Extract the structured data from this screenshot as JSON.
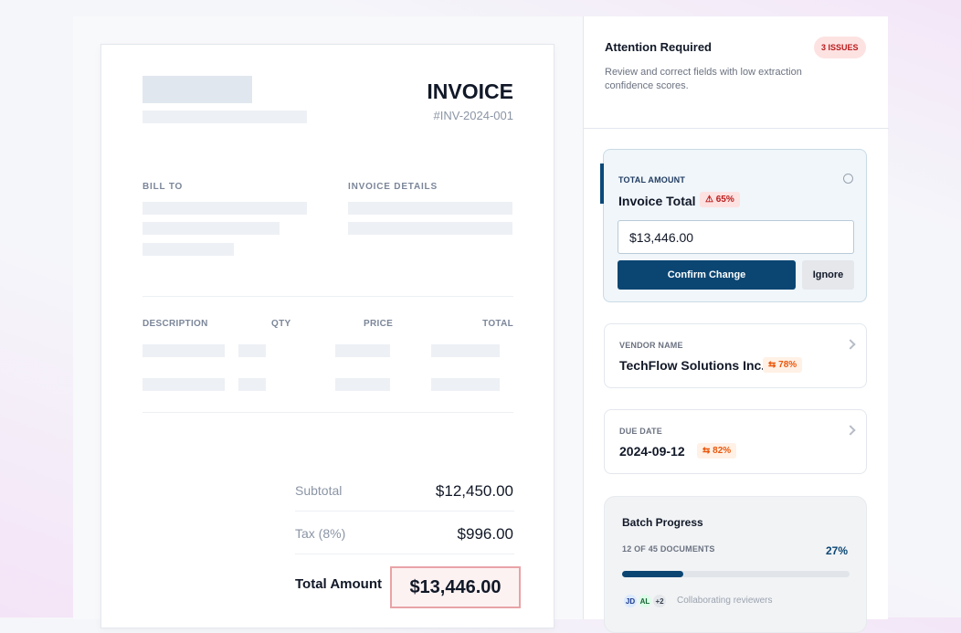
{
  "invoice": {
    "title": "INVOICE",
    "number": "#INV-2024-001",
    "bill_to": "BILL TO",
    "details_label": "INVOICE DETAILS",
    "columns": [
      "DESCRIPTION",
      "QTY",
      "PRICE",
      "TOTAL"
    ],
    "subtotal_label": "Subtotal",
    "subtotal": "$12,450.00",
    "tax_label": "Tax (8%)",
    "tax": "$996.00",
    "total_label": "Total Amount",
    "total": "$13,446.00"
  },
  "sidebar": {
    "title": "Attention Required",
    "issues": "3 ISSUES",
    "description": "Review and correct fields with low extraction confidence scores.",
    "fields": [
      {
        "label": "TOTAL AMOUNT",
        "name": "Invoice Total",
        "confidence": "65%",
        "input": "$13,446.00",
        "confirm": "Confirm Change",
        "ignore": "Ignore"
      },
      {
        "label": "VENDOR NAME",
        "name": "TechFlow Solutions Inc.",
        "confidence": "78%"
      },
      {
        "label": "DUE DATE",
        "name": "2024-09-12",
        "confidence": "82%"
      }
    ],
    "batch": {
      "title": "Batch Progress",
      "documents": "12 OF 45 DOCUMENTS",
      "progress": {
        "value": 27,
        "label": "27%"
      },
      "avatars": [
        "JD",
        "AL",
        "+2"
      ],
      "reviewers": "Collaborating reviewers"
    }
  }
}
